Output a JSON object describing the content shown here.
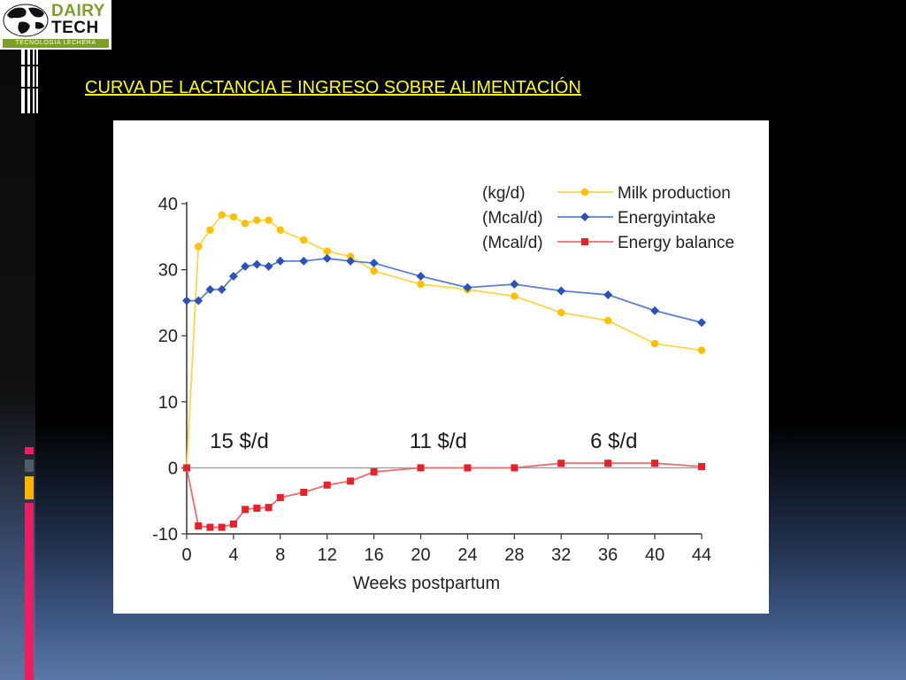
{
  "logo": {
    "brand_top": "DAIRY",
    "brand_bottom": "TECH",
    "tagline": "TECNOLOGIA LECHERA"
  },
  "slide": {
    "title": "CURVA DE LACTANCIA E INGRESO SOBRE ALIMENTACIÓN"
  },
  "colors": {
    "title": "#ffff00",
    "milk": "#ffc000",
    "energy_intake": "#2a52be",
    "energy_balance": "#e8202a",
    "accent_pink": "#e91e63",
    "accent_orange": "#ffb300",
    "accent_gray": "#555b66"
  },
  "chart_data": {
    "type": "line",
    "xlabel": "Weeks postpartum",
    "ylabel": "",
    "xlim": [
      0,
      44
    ],
    "ylim": [
      -10,
      40
    ],
    "xticks": [
      0,
      4,
      8,
      12,
      16,
      20,
      24,
      28,
      32,
      36,
      40,
      44
    ],
    "yticks": [
      -10,
      0,
      10,
      20,
      30,
      40
    ],
    "grid": false,
    "legend_position": "top-right",
    "series": [
      {
        "name": "Milk production",
        "unit": "(kg/d)",
        "color": "#ffc000",
        "marker": "circle",
        "x": [
          0,
          1,
          2,
          3,
          4,
          5,
          6,
          7,
          8,
          10,
          12,
          14,
          16,
          20,
          24,
          28,
          32,
          36,
          40,
          44
        ],
        "y": [
          0,
          33.5,
          36,
          38.3,
          38,
          37,
          37.5,
          37.5,
          36,
          34.5,
          32.8,
          32,
          29.8,
          27.8,
          27,
          26,
          23.5,
          22.3,
          18.8,
          17.8
        ]
      },
      {
        "name": "Energy intake",
        "unit": "(Mcal/d)",
        "color": "#2a52be",
        "marker": "diamond",
        "x": [
          0,
          1,
          2,
          3,
          4,
          5,
          6,
          7,
          8,
          10,
          12,
          14,
          16,
          20,
          24,
          28,
          32,
          36,
          40,
          44
        ],
        "y": [
          25.3,
          25.3,
          27,
          27,
          29,
          30.5,
          30.8,
          30.5,
          31.3,
          31.3,
          31.7,
          31.3,
          31,
          29,
          27.3,
          27.8,
          26.8,
          26.2,
          23.8,
          22
        ],
        "label_display": "Energyintake"
      },
      {
        "name": "Energy balance",
        "unit": "(Mcal/d)",
        "color": "#e8202a",
        "marker": "square",
        "x": [
          0,
          1,
          2,
          3,
          4,
          5,
          6,
          7,
          8,
          10,
          12,
          14,
          16,
          20,
          24,
          28,
          32,
          36,
          40,
          44
        ],
        "y": [
          0,
          -8.8,
          -9,
          -9,
          -8.5,
          -6.3,
          -6.1,
          -6,
          -4.5,
          -3.7,
          -2.6,
          -2,
          -0.6,
          0,
          0,
          0,
          0.7,
          0.7,
          0.7,
          0.2
        ]
      }
    ],
    "annotations": [
      {
        "text": "15 $/d",
        "x": 4.5,
        "y": 3
      },
      {
        "text": "11 $/d",
        "x": 21.5,
        "y": 3
      },
      {
        "text": "6 $/d",
        "x": 36.5,
        "y": 3
      }
    ]
  }
}
